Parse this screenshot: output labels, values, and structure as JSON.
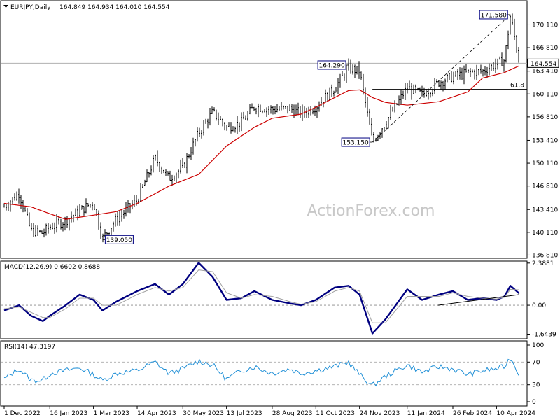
{
  "header": {
    "symbol": "EURJPY,Daily",
    "ohlc": "164.849 164.934 164.010 164.554",
    "macd_title": "MACD(12,26,9) 0.6602 0.8688",
    "rsi_title": "RSI(14) 47.3197"
  },
  "watermark": "ActionForex.com",
  "colors": {
    "candle": "#000000",
    "sma": "#cc0000",
    "macd": "#000080",
    "signal": "#a0a0a0",
    "rsi": "#1f8fd6",
    "callout_border": "#000080"
  },
  "chart_data": [
    {
      "type": "line",
      "panel": "price",
      "ylim": [
        136.35,
        173.6
      ],
      "yticks": [
        "170.110",
        "166.810",
        "163.410",
        "160.110",
        "156.810",
        "153.410",
        "150.110",
        "146.810",
        "143.410",
        "140.110",
        "136.810"
      ],
      "last_price_label": "164.554",
      "x_dates": [
        "1 Dec 2022",
        "16 Jan 2023",
        "1 Mar 2023",
        "14 Apr 2023",
        "30 May 2023",
        "13 Jul 2023",
        "28 Aug 2023",
        "11 Oct 2023",
        "24 Nov 2023",
        "11 Jan 2024",
        "26 Feb 2024",
        "10 Apr 2024"
      ],
      "close_path": [
        [
          "1 Dec 2022",
          143.8
        ],
        [
          "16 Dec 2022",
          145.8
        ],
        [
          "28 Dec 2022",
          140.3
        ],
        [
          "9 Jan 2023",
          140.0
        ],
        [
          "16 Jan 2023",
          140.9
        ],
        [
          "1 Feb 2023",
          141.8
        ],
        [
          "15 Feb 2023",
          143.2
        ],
        [
          "1 Mar 2023",
          144.5
        ],
        [
          "10 Mar 2023",
          139.2
        ],
        [
          "24 Mar 2023",
          142.0
        ],
        [
          "14 Apr 2023",
          144.8
        ],
        [
          "2 May 2023",
          150.8
        ],
        [
          "16 May 2023",
          147.9
        ],
        [
          "30 May 2023",
          149.5
        ],
        [
          "15 Jun 2023",
          154.5
        ],
        [
          "29 Jun 2023",
          157.5
        ],
        [
          "13 Jul 2023",
          155.3
        ],
        [
          "28 Jul 2023",
          156.0
        ],
        [
          "10 Aug 2023",
          158.3
        ],
        [
          "28 Aug 2023",
          157.9
        ],
        [
          "15 Sep 2023",
          158.0
        ],
        [
          "26 Sep 2023",
          157.3
        ],
        [
          "11 Oct 2023",
          158.3
        ],
        [
          "30 Oct 2023",
          161.0
        ],
        [
          "13 Nov 2023",
          163.8
        ],
        [
          "24 Nov 2023",
          163.4
        ],
        [
          "7 Dec 2023",
          153.2
        ],
        [
          "20 Dec 2023",
          156.0
        ],
        [
          "11 Jan 2024",
          161.0
        ],
        [
          "26 Jan 2024",
          160.0
        ],
        [
          "12 Feb 2024",
          161.8
        ],
        [
          "26 Feb 2024",
          162.6
        ],
        [
          "12 Mar 2024",
          163.2
        ],
        [
          "27 Mar 2024",
          163.4
        ],
        [
          "10 Apr 2024",
          164.5
        ],
        [
          "18 Apr 2024",
          165.0
        ],
        [
          "24 Apr 2024",
          171.5
        ],
        [
          "3 May 2024",
          164.554
        ]
      ],
      "sma": [
        [
          "1 Dec 2022",
          144.3
        ],
        [
          "28 Dec 2022",
          143.8
        ],
        [
          "16 Jan 2023",
          142.8
        ],
        [
          "1 Feb 2023",
          142.0
        ],
        [
          "1 Mar 2023",
          142.6
        ],
        [
          "24 Mar 2023",
          143.1
        ],
        [
          "14 Apr 2023",
          144.3
        ],
        [
          "16 May 2023",
          146.8
        ],
        [
          "15 Jun 2023",
          148.5
        ],
        [
          "13 Jul 2023",
          152.6
        ],
        [
          "10 Aug 2023",
          155.3
        ],
        [
          "28 Aug 2023",
          156.6
        ],
        [
          "26 Sep 2023",
          157.2
        ],
        [
          "11 Oct 2023",
          158.2
        ],
        [
          "30 Oct 2023",
          159.6
        ],
        [
          "13 Nov 2023",
          160.6
        ],
        [
          "24 Nov 2023",
          160.7
        ],
        [
          "7 Dec 2023",
          159.6
        ],
        [
          "20 Dec 2023",
          158.9
        ],
        [
          "11 Jan 2024",
          158.5
        ],
        [
          "12 Feb 2024",
          159.0
        ],
        [
          "12 Mar 2024",
          160.4
        ],
        [
          "27 Mar 2024",
          162.4
        ],
        [
          "18 Apr 2024",
          163.2
        ],
        [
          "3 May 2024",
          164.2
        ]
      ],
      "annotations": [
        {
          "text": "171.580",
          "x": "24 Apr 2024",
          "y": 171.58
        },
        {
          "text": "164.290",
          "x": "13 Nov 2023",
          "y": 164.29
        },
        {
          "text": "153.150",
          "x": "7 Dec 2023",
          "y": 153.15
        },
        {
          "text": "139.050",
          "x": "10 Mar 2023",
          "y": 139.05
        },
        {
          "text": "61.8",
          "x": "3 May 2024",
          "y": 160.8
        }
      ],
      "retracement_level": 160.8,
      "trendline": [
        [
          "7 Dec 2023",
          153.15
        ],
        [
          "24 Apr 2024",
          171.58
        ]
      ]
    },
    {
      "type": "line",
      "panel": "macd",
      "yticks": [
        "2.3881",
        "0.00",
        "-1.6439"
      ],
      "ylim": [
        -1.9,
        2.5
      ],
      "series": [
        {
          "role": "macd",
          "values": [
            [
              "1 Dec 2022",
              -0.3
            ],
            [
              "16 Dec 2022",
              0.0
            ],
            [
              "28 Dec 2022",
              -0.6
            ],
            [
              "9 Jan 2023",
              -0.9
            ],
            [
              "16 Jan 2023",
              -0.6
            ],
            [
              "1 Feb 2023",
              0.0
            ],
            [
              "15 Feb 2023",
              0.6
            ],
            [
              "1 Mar 2023",
              0.3
            ],
            [
              "10 Mar 2023",
              -0.3
            ],
            [
              "24 Mar 2023",
              0.2
            ],
            [
              "14 Apr 2023",
              0.8
            ],
            [
              "2 May 2023",
              1.2
            ],
            [
              "16 May 2023",
              0.6
            ],
            [
              "30 May 2023",
              1.2
            ],
            [
              "15 Jun 2023",
              2.4
            ],
            [
              "29 Jun 2023",
              1.6
            ],
            [
              "13 Jul 2023",
              0.3
            ],
            [
              "28 Jul 2023",
              0.4
            ],
            [
              "10 Aug 2023",
              0.8
            ],
            [
              "28 Aug 2023",
              0.3
            ],
            [
              "15 Sep 2023",
              0.1
            ],
            [
              "26 Sep 2023",
              0.0
            ],
            [
              "11 Oct 2023",
              0.3
            ],
            [
              "30 Oct 2023",
              1.0
            ],
            [
              "13 Nov 2023",
              1.1
            ],
            [
              "24 Nov 2023",
              0.6
            ],
            [
              "7 Dec 2023",
              -1.6
            ],
            [
              "20 Dec 2023",
              -0.8
            ],
            [
              "11 Jan 2024",
              0.9
            ],
            [
              "26 Jan 2024",
              0.3
            ],
            [
              "12 Feb 2024",
              0.6
            ],
            [
              "26 Feb 2024",
              0.8
            ],
            [
              "12 Mar 2024",
              0.3
            ],
            [
              "27 Mar 2024",
              0.4
            ],
            [
              "10 Apr 2024",
              0.3
            ],
            [
              "18 Apr 2024",
              0.5
            ],
            [
              "24 Apr 2024",
              1.1
            ],
            [
              "3 May 2024",
              0.66
            ]
          ]
        },
        {
          "role": "signal",
          "values": [
            [
              "1 Dec 2022",
              -0.2
            ],
            [
              "16 Dec 2022",
              -0.1
            ],
            [
              "28 Dec 2022",
              -0.4
            ],
            [
              "9 Jan 2023",
              -0.7
            ],
            [
              "16 Jan 2023",
              -0.7
            ],
            [
              "1 Feb 2023",
              -0.2
            ],
            [
              "15 Feb 2023",
              0.4
            ],
            [
              "1 Mar 2023",
              0.4
            ],
            [
              "10 Mar 2023",
              0.0
            ],
            [
              "24 Mar 2023",
              0.0
            ],
            [
              "14 Apr 2023",
              0.6
            ],
            [
              "2 May 2023",
              1.0
            ],
            [
              "16 May 2023",
              0.8
            ],
            [
              "30 May 2023",
              1.0
            ],
            [
              "15 Jun 2023",
              2.0
            ],
            [
              "29 Jun 2023",
              1.9
            ],
            [
              "13 Jul 2023",
              0.7
            ],
            [
              "28 Jul 2023",
              0.4
            ],
            [
              "10 Aug 2023",
              0.6
            ],
            [
              "28 Aug 2023",
              0.5
            ],
            [
              "15 Sep 2023",
              0.2
            ],
            [
              "26 Sep 2023",
              0.05
            ],
            [
              "11 Oct 2023",
              0.2
            ],
            [
              "30 Oct 2023",
              0.8
            ],
            [
              "13 Nov 2023",
              1.0
            ],
            [
              "24 Nov 2023",
              0.8
            ],
            [
              "7 Dec 2023",
              -1.0
            ],
            [
              "20 Dec 2023",
              -1.0
            ],
            [
              "11 Jan 2024",
              0.5
            ],
            [
              "26 Jan 2024",
              0.5
            ],
            [
              "12 Feb 2024",
              0.5
            ],
            [
              "26 Feb 2024",
              0.7
            ],
            [
              "12 Mar 2024",
              0.5
            ],
            [
              "27 Mar 2024",
              0.4
            ],
            [
              "10 Apr 2024",
              0.35
            ],
            [
              "18 Apr 2024",
              0.45
            ],
            [
              "24 Apr 2024",
              0.9
            ],
            [
              "3 May 2024",
              0.87
            ]
          ]
        }
      ],
      "trendline": [
        [
          "11 Feb 2024",
          0.0
        ],
        [
          "3 May 2024",
          0.6
        ]
      ]
    },
    {
      "type": "line",
      "panel": "rsi",
      "yticks": [
        "100",
        "70",
        "30",
        "0"
      ],
      "ylim": [
        0,
        100
      ],
      "values": [
        [
          "1 Dec 2022",
          40
        ],
        [
          "16 Dec 2022",
          58
        ],
        [
          "28 Dec 2022",
          38
        ],
        [
          "9 Jan 2023",
          38
        ],
        [
          "16 Jan 2023",
          50
        ],
        [
          "1 Feb 2023",
          55
        ],
        [
          "15 Feb 2023",
          60
        ],
        [
          "1 Mar 2023",
          48
        ],
        [
          "10 Mar 2023",
          37
        ],
        [
          "24 Mar 2023",
          50
        ],
        [
          "14 Apr 2023",
          55
        ],
        [
          "2 May 2023",
          70
        ],
        [
          "16 May 2023",
          50
        ],
        [
          "30 May 2023",
          58
        ],
        [
          "15 Jun 2023",
          72
        ],
        [
          "29 Jun 2023",
          65
        ],
        [
          "13 Jul 2023",
          40
        ],
        [
          "28 Jul 2023",
          55
        ],
        [
          "10 Aug 2023",
          62
        ],
        [
          "28 Aug 2023",
          50
        ],
        [
          "15 Sep 2023",
          58
        ],
        [
          "26 Sep 2023",
          50
        ],
        [
          "11 Oct 2023",
          55
        ],
        [
          "30 Oct 2023",
          62
        ],
        [
          "13 Nov 2023",
          70
        ],
        [
          "24 Nov 2023",
          48
        ],
        [
          "7 Dec 2023",
          28
        ],
        [
          "20 Dec 2023",
          45
        ],
        [
          "11 Jan 2024",
          65
        ],
        [
          "26 Jan 2024",
          52
        ],
        [
          "12 Feb 2024",
          62
        ],
        [
          "26 Feb 2024",
          58
        ],
        [
          "12 Mar 2024",
          48
        ],
        [
          "27 Mar 2024",
          55
        ],
        [
          "10 Apr 2024",
          58
        ],
        [
          "18 Apr 2024",
          62
        ],
        [
          "24 Apr 2024",
          78
        ],
        [
          "3 May 2024",
          47.3
        ]
      ]
    }
  ]
}
